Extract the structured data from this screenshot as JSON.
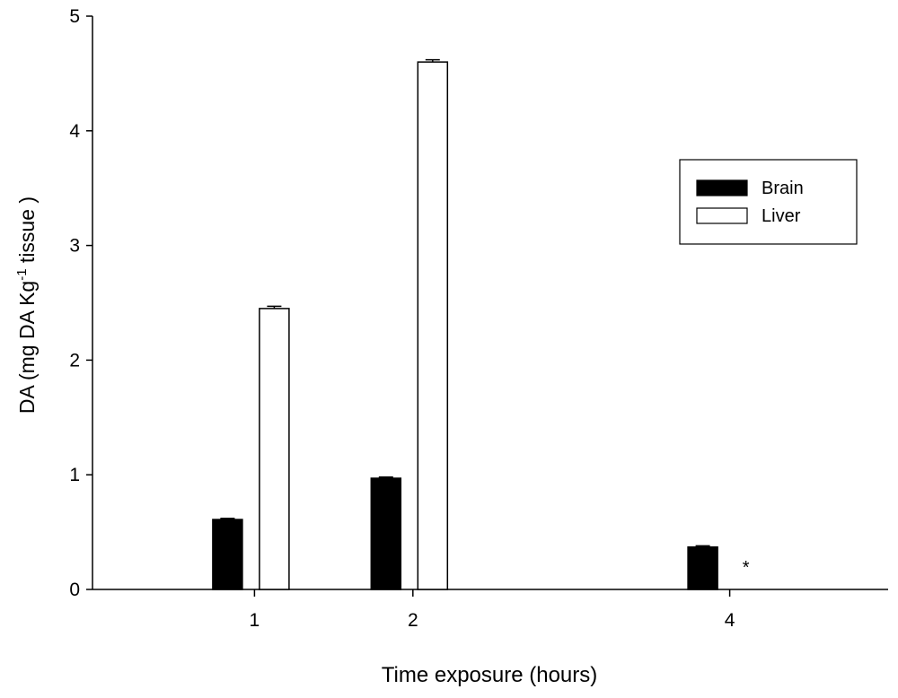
{
  "chart_data": {
    "type": "bar",
    "xlabel": "Time exposure (hours)",
    "ylabel_parts": [
      "DA (mg DA Kg",
      "-1",
      " tissue )"
    ],
    "x": [
      1,
      2,
      4
    ],
    "xlim": [
      0,
      5
    ],
    "xticks": [
      1,
      2,
      4
    ],
    "ylim": [
      0,
      5
    ],
    "yticks": [
      0,
      1,
      2,
      3,
      4,
      5
    ],
    "series": [
      {
        "name": "Brain",
        "color": "#000000",
        "values": [
          0.61,
          0.97,
          0.37
        ],
        "errors": [
          0.01,
          0.01,
          0.01
        ]
      },
      {
        "name": "Liver",
        "color": "#ffffff",
        "values": [
          2.45,
          4.6,
          null
        ],
        "errors": [
          0.02,
          0.02,
          null
        ]
      }
    ],
    "annotations": [
      {
        "text": "*",
        "x": 4
      }
    ],
    "legend": "upper right"
  }
}
